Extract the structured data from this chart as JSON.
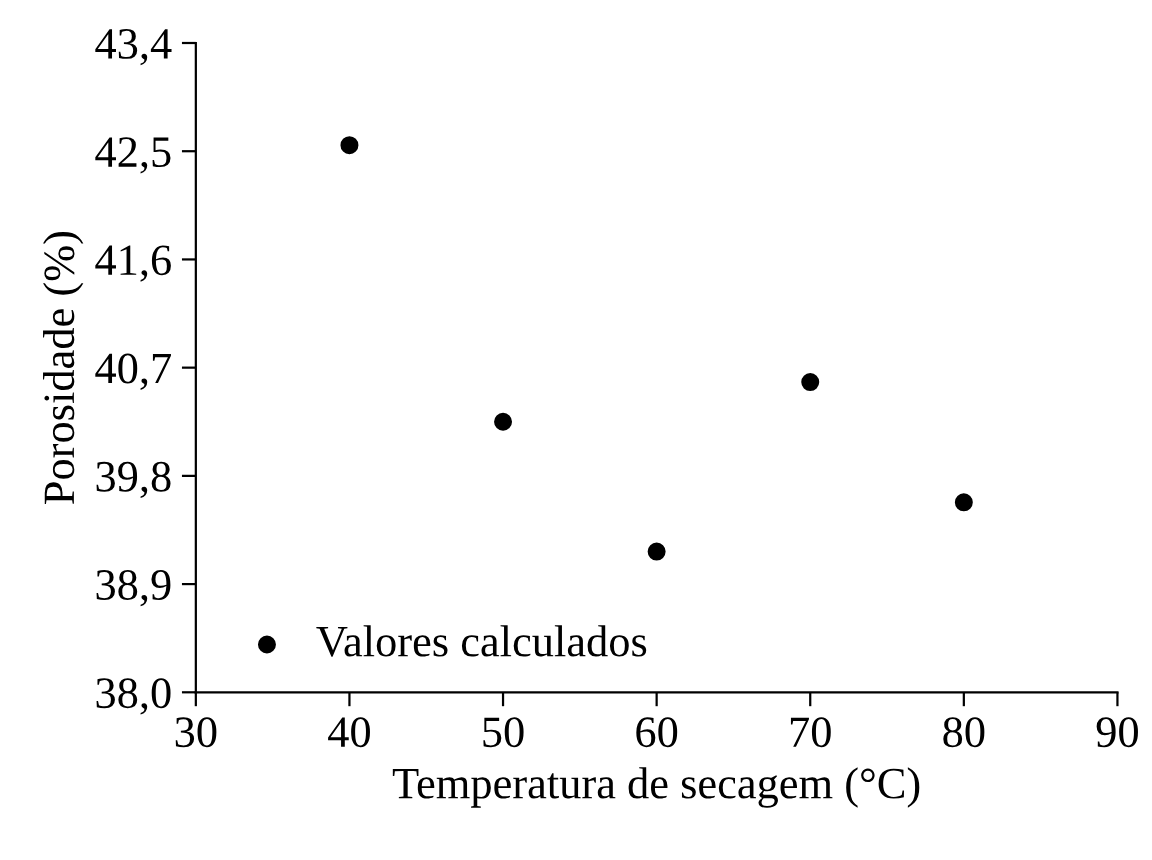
{
  "chart_data": {
    "type": "scatter",
    "xlabel": "Temperatura de secagem (°C)",
    "ylabel": "Porosidade (%)",
    "x": [
      40,
      50,
      60,
      70,
      80
    ],
    "series": [
      {
        "name": "Valores calculados",
        "color": "#000000",
        "values": [
          42.55,
          40.25,
          39.17,
          40.58,
          39.58
        ]
      }
    ],
    "xlim": [
      30,
      90
    ],
    "xticks": [
      30,
      40,
      50,
      60,
      70,
      80,
      90
    ],
    "ylim": [
      38.0,
      43.4
    ],
    "yticks": [
      {
        "value": 38.0,
        "label": "38,0"
      },
      {
        "value": 38.9,
        "label": "38,9"
      },
      {
        "value": 39.8,
        "label": "39,8"
      },
      {
        "value": 40.7,
        "label": "40,7"
      },
      {
        "value": 41.6,
        "label": "41,6"
      },
      {
        "value": 42.5,
        "label": "42,5"
      },
      {
        "value": 43.4,
        "label": "43,4"
      }
    ],
    "grid": false,
    "legend": "bottom left",
    "marker": "circle"
  }
}
